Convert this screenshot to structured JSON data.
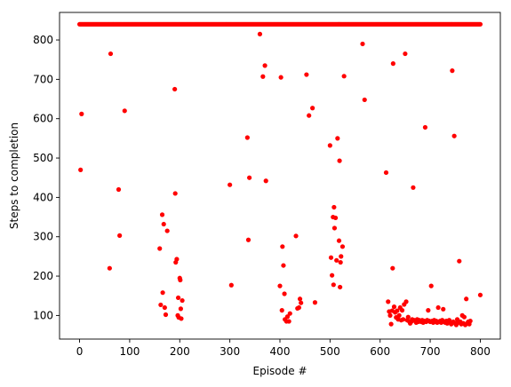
{
  "chart_data": {
    "type": "scatter",
    "title": "",
    "xlabel": "Episode #",
    "ylabel": "Steps to completion",
    "xlim": [
      -40,
      840
    ],
    "ylim": [
      40,
      870
    ],
    "xticks": [
      0,
      100,
      200,
      300,
      400,
      500,
      600,
      700,
      800
    ],
    "yticks": [
      100,
      200,
      300,
      400,
      500,
      600,
      700,
      800
    ],
    "grid": false,
    "color": "#ff0000",
    "cap_value": 840,
    "cap_episode_range": [
      0,
      800
    ],
    "points": [
      [
        2,
        470
      ],
      [
        4,
        612
      ],
      [
        60,
        220
      ],
      [
        62,
        765
      ],
      [
        78,
        420
      ],
      [
        80,
        303
      ],
      [
        90,
        620
      ],
      [
        160,
        270
      ],
      [
        162,
        127
      ],
      [
        165,
        356
      ],
      [
        166,
        158
      ],
      [
        168,
        332
      ],
      [
        170,
        120
      ],
      [
        172,
        102
      ],
      [
        175,
        315
      ],
      [
        190,
        675
      ],
      [
        191,
        410
      ],
      [
        192,
        235
      ],
      [
        194,
        243
      ],
      [
        196,
        100
      ],
      [
        197,
        145
      ],
      [
        198,
        95
      ],
      [
        200,
        195
      ],
      [
        201,
        190
      ],
      [
        202,
        117
      ],
      [
        203,
        92
      ],
      [
        205,
        138
      ],
      [
        300,
        432
      ],
      [
        303,
        177
      ],
      [
        335,
        552
      ],
      [
        337,
        292
      ],
      [
        339,
        450
      ],
      [
        360,
        815
      ],
      [
        366,
        707
      ],
      [
        370,
        735
      ],
      [
        372,
        442
      ],
      [
        400,
        175
      ],
      [
        402,
        705
      ],
      [
        404,
        113
      ],
      [
        405,
        275
      ],
      [
        407,
        227
      ],
      [
        409,
        155
      ],
      [
        410,
        90
      ],
      [
        413,
        85
      ],
      [
        415,
        97
      ],
      [
        418,
        85
      ],
      [
        420,
        105
      ],
      [
        432,
        302
      ],
      [
        435,
        118
      ],
      [
        438,
        120
      ],
      [
        440,
        142
      ],
      [
        442,
        132
      ],
      [
        453,
        712
      ],
      [
        458,
        608
      ],
      [
        465,
        627
      ],
      [
        470,
        133
      ],
      [
        500,
        532
      ],
      [
        502,
        247
      ],
      [
        504,
        202
      ],
      [
        506,
        350
      ],
      [
        507,
        178
      ],
      [
        508,
        375
      ],
      [
        509,
        322
      ],
      [
        511,
        348
      ],
      [
        513,
        240
      ],
      [
        515,
        550
      ],
      [
        518,
        290
      ],
      [
        519,
        493
      ],
      [
        520,
        172
      ],
      [
        521,
        235
      ],
      [
        522,
        250
      ],
      [
        525,
        275
      ],
      [
        528,
        708
      ],
      [
        565,
        790
      ],
      [
        569,
        648
      ],
      [
        612,
        463
      ],
      [
        616,
        135
      ],
      [
        618,
        110
      ],
      [
        620,
        100
      ],
      [
        622,
        78
      ],
      [
        624,
        112
      ],
      [
        625,
        220
      ],
      [
        626,
        740
      ],
      [
        628,
        122
      ],
      [
        630,
        108
      ],
      [
        632,
        95
      ],
      [
        634,
        112
      ],
      [
        636,
        90
      ],
      [
        638,
        100
      ],
      [
        640,
        120
      ],
      [
        642,
        88
      ],
      [
        644,
        113
      ],
      [
        646,
        90
      ],
      [
        648,
        128
      ],
      [
        650,
        765
      ],
      [
        652,
        135
      ],
      [
        654,
        88
      ],
      [
        656,
        96
      ],
      [
        658,
        85
      ],
      [
        660,
        80
      ],
      [
        662,
        84
      ],
      [
        664,
        90
      ],
      [
        666,
        425
      ],
      [
        668,
        88
      ],
      [
        670,
        86
      ],
      [
        672,
        82
      ],
      [
        674,
        90
      ],
      [
        676,
        84
      ],
      [
        678,
        88
      ],
      [
        680,
        86
      ],
      [
        682,
        84
      ],
      [
        684,
        88
      ],
      [
        686,
        82
      ],
      [
        688,
        86
      ],
      [
        690,
        578
      ],
      [
        692,
        84
      ],
      [
        694,
        88
      ],
      [
        696,
        113
      ],
      [
        698,
        86
      ],
      [
        700,
        84
      ],
      [
        702,
        175
      ],
      [
        704,
        86
      ],
      [
        706,
        82
      ],
      [
        708,
        88
      ],
      [
        710,
        84
      ],
      [
        712,
        86
      ],
      [
        714,
        82
      ],
      [
        716,
        120
      ],
      [
        718,
        84
      ],
      [
        720,
        86
      ],
      [
        722,
        82
      ],
      [
        724,
        88
      ],
      [
        726,
        116
      ],
      [
        728,
        84
      ],
      [
        730,
        82
      ],
      [
        732,
        86
      ],
      [
        734,
        80
      ],
      [
        736,
        84
      ],
      [
        738,
        88
      ],
      [
        740,
        82
      ],
      [
        742,
        78
      ],
      [
        744,
        722
      ],
      [
        746,
        84
      ],
      [
        748,
        556
      ],
      [
        750,
        80
      ],
      [
        752,
        76
      ],
      [
        754,
        90
      ],
      [
        756,
        82
      ],
      [
        758,
        238
      ],
      [
        760,
        84
      ],
      [
        762,
        78
      ],
      [
        764,
        100
      ],
      [
        766,
        80
      ],
      [
        768,
        96
      ],
      [
        770,
        76
      ],
      [
        772,
        142
      ],
      [
        774,
        80
      ],
      [
        776,
        84
      ],
      [
        778,
        78
      ],
      [
        780,
        86
      ],
      [
        800,
        152
      ]
    ]
  }
}
